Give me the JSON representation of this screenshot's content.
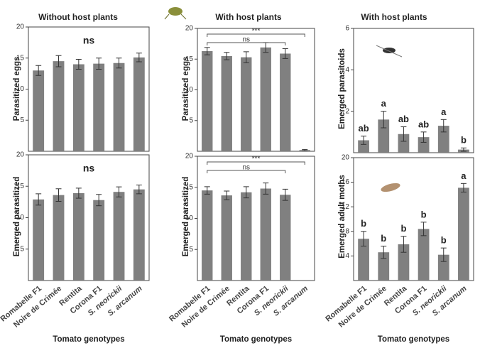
{
  "chart_data": [
    {
      "type": "bar",
      "title": "Without host plants",
      "ylabel": "Parasitized eggs",
      "categories": [
        null,
        null,
        null,
        null,
        null,
        null
      ],
      "values": [
        13.0,
        14.5,
        14.0,
        14.1,
        14.2,
        15.1
      ],
      "errors": [
        0.8,
        0.9,
        0.8,
        0.9,
        0.8,
        0.7
      ],
      "annotation": "ns",
      "color": "#808080",
      "ylim": [
        0,
        20
      ],
      "yticks": [
        5,
        10,
        15,
        20
      ]
    },
    {
      "type": "bar",
      "title": "With host plants",
      "ylabel": "Parasitized eggs",
      "categories": [
        null,
        null,
        null,
        null,
        null,
        null
      ],
      "values": [
        16.3,
        15.5,
        15.3,
        16.9,
        15.9,
        0.2
      ],
      "errors": [
        0.6,
        0.6,
        0.9,
        0.8,
        0.8,
        0.1
      ],
      "brackets": [
        {
          "label": "***"
        },
        {
          "label": "ns"
        }
      ],
      "color": "#808080",
      "ylim": [
        0,
        20
      ],
      "yticks": [
        5,
        10,
        15,
        20
      ]
    },
    {
      "type": "bar",
      "title": "With host plants",
      "ylabel": "Emerged parasitoids",
      "categories": [
        null,
        null,
        null,
        null,
        null,
        null
      ],
      "values": [
        0.6,
        1.6,
        0.9,
        0.75,
        1.3,
        0.15
      ],
      "errors": [
        0.2,
        0.4,
        0.35,
        0.25,
        0.3,
        0.08
      ],
      "letters": [
        "ab",
        "a",
        "ab",
        "ab",
        "a",
        "b"
      ],
      "color": "#808080",
      "ylim": [
        0,
        6
      ],
      "yticks": [
        2,
        4,
        6
      ]
    },
    {
      "type": "bar",
      "xlabel": "Tomato genotypes",
      "ylabel": "Emerged parasitized",
      "categories": [
        "Romabelle F1",
        "Noire de Crimée",
        "Rentita",
        "Corona F1",
        "S. neorickii",
        "S. arcanum"
      ],
      "values": [
        12.9,
        13.6,
        13.9,
        12.8,
        14.1,
        14.5
      ],
      "errors": [
        0.9,
        1.0,
        0.8,
        0.9,
        0.8,
        0.7
      ],
      "annotation": "ns",
      "color": "#808080",
      "ylim": [
        0,
        20
      ],
      "yticks": [
        5,
        10,
        15,
        20
      ]
    },
    {
      "type": "bar",
      "xlabel": "Tomato genotypes",
      "ylabel": "Emerged parasitized",
      "categories": [
        "Romabelle F1",
        "Noire de Crimée",
        "Rentita",
        "Corona F1",
        "S. neorickii",
        "S. arcanum"
      ],
      "values": [
        14.5,
        13.7,
        14.2,
        14.8,
        13.8,
        0
      ],
      "errors": [
        0.6,
        0.7,
        0.9,
        0.9,
        0.9,
        0
      ],
      "brackets": [
        {
          "label": "***"
        },
        {
          "label": "ns"
        }
      ],
      "color": "#808080",
      "ylim": [
        0,
        20
      ],
      "yticks": [
        5,
        10,
        15,
        20
      ]
    },
    {
      "type": "bar",
      "xlabel": "Tomato genotypes",
      "ylabel": "Emerged adult moths",
      "categories": [
        "Romabelle F1",
        "Noire de Crimée",
        "Rentita",
        "Corona F1",
        "S. neorickii",
        "S. arcanum"
      ],
      "values": [
        6.8,
        4.6,
        5.9,
        8.4,
        4.2,
        15.1
      ],
      "errors": [
        1.2,
        1.0,
        1.3,
        1.1,
        1.1,
        0.7
      ],
      "letters": [
        "b",
        "b",
        "b",
        "b",
        "b",
        "a"
      ],
      "color": "#808080",
      "ylim": [
        0,
        20
      ],
      "yticks": [
        4,
        8,
        12,
        16,
        20
      ]
    }
  ]
}
